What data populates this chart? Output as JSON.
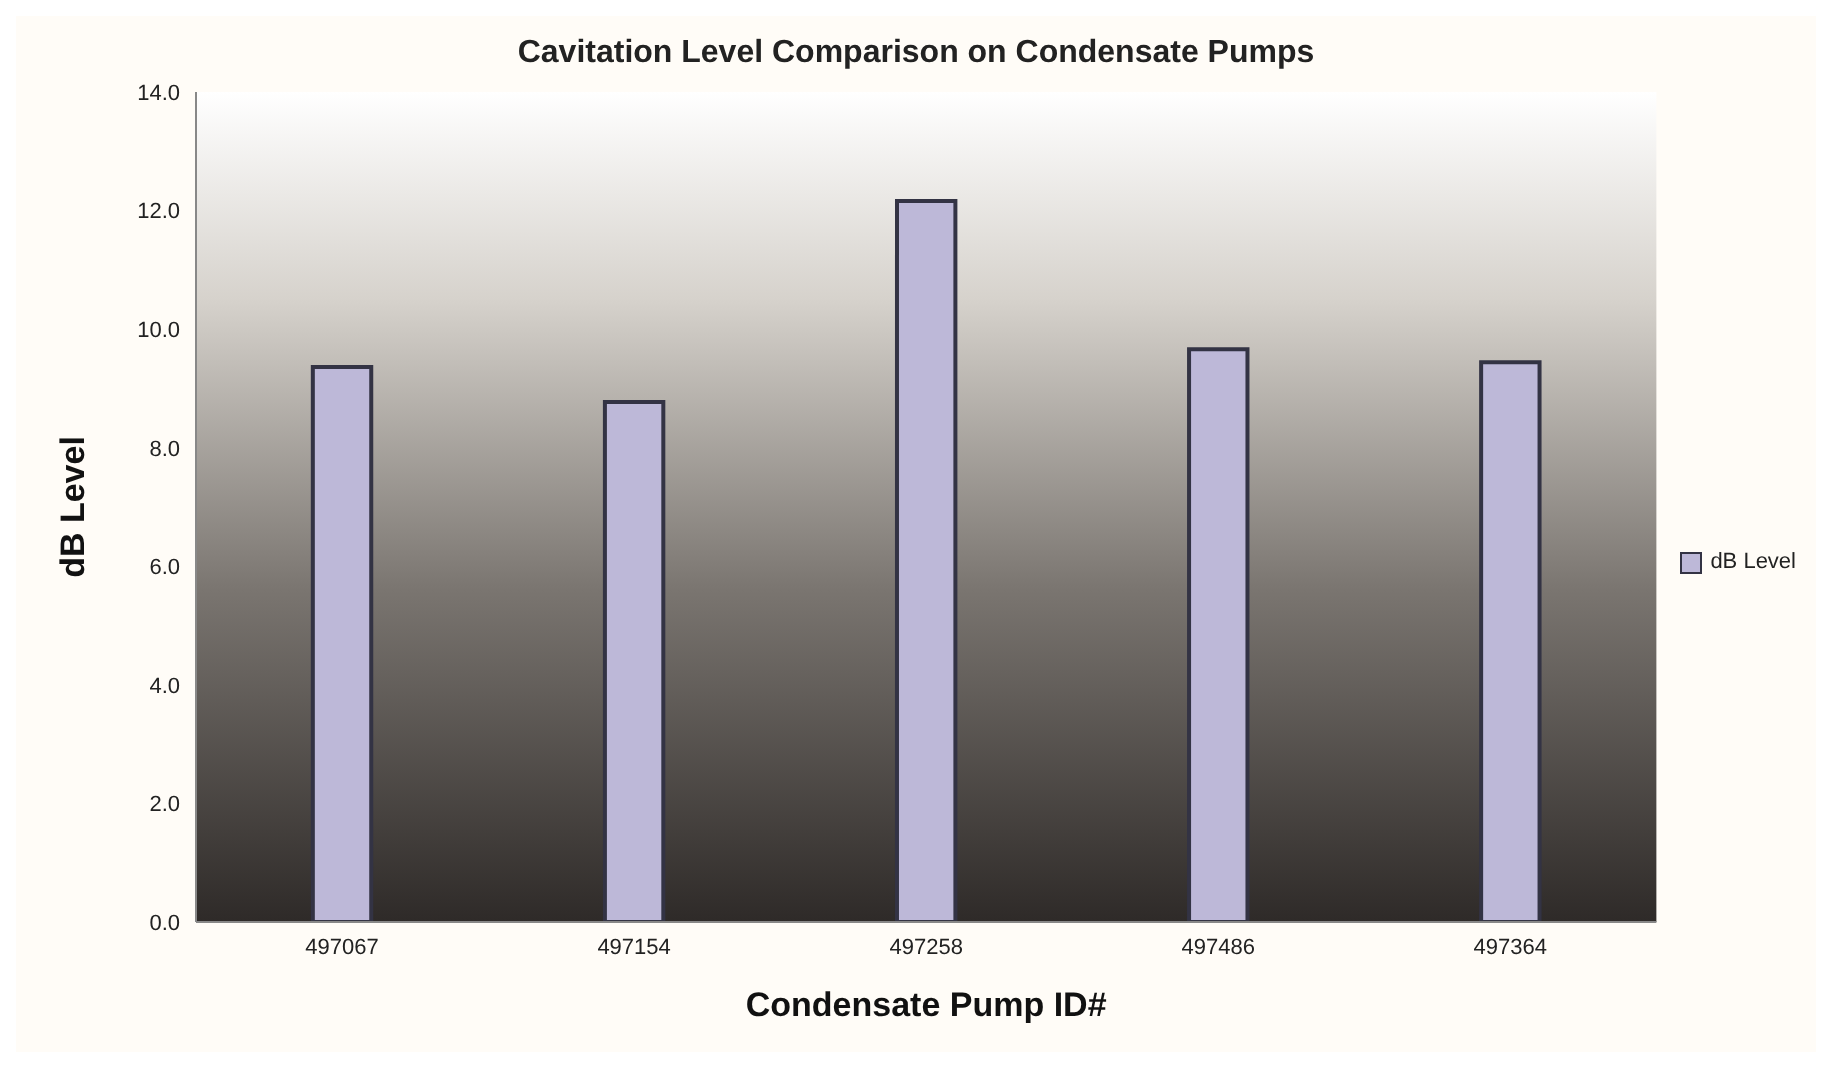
{
  "chart_data": {
    "type": "bar",
    "title": "Cavitation Level Comparison on Condensate Pumps",
    "xlabel": "Condensate Pump ID#",
    "ylabel": "dB Level",
    "categories": [
      "497067",
      "497154",
      "497258",
      "497486",
      "497364"
    ],
    "series": [
      {
        "name": "dB Level",
        "color": "#bdb8d8",
        "values": [
          9.36,
          8.77,
          12.16,
          9.66,
          9.44
        ]
      }
    ],
    "ylim": [
      0,
      14
    ],
    "yticks": [
      {
        "value": 0,
        "label": "0.0"
      },
      {
        "value": 2,
        "label": "2.0"
      },
      {
        "value": 4,
        "label": "4.0"
      },
      {
        "value": 6,
        "label": "6.0"
      },
      {
        "value": 8,
        "label": "8.0"
      },
      {
        "value": 10,
        "label": "10.0"
      },
      {
        "value": 12,
        "label": "12.0"
      },
      {
        "value": 14,
        "label": "14.0"
      }
    ],
    "grid": false,
    "legend": "right"
  }
}
